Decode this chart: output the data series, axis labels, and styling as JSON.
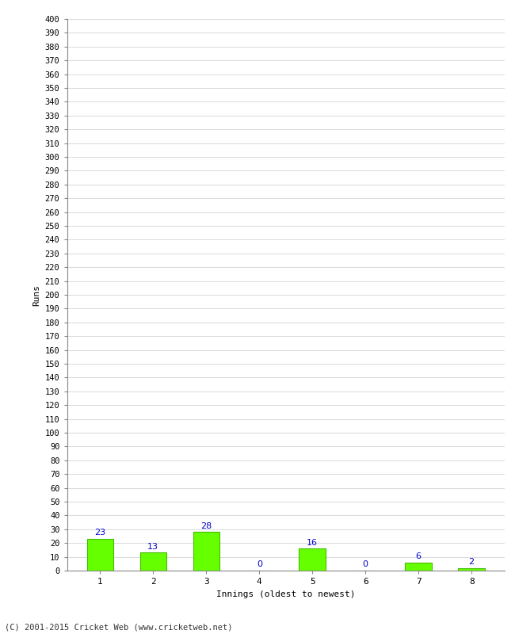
{
  "categories": [
    "1",
    "2",
    "3",
    "4",
    "5",
    "6",
    "7",
    "8"
  ],
  "values": [
    23,
    13,
    28,
    0,
    16,
    0,
    6,
    2
  ],
  "bar_color": "#66ff00",
  "bar_edge_color": "#44bb00",
  "label_color": "#0000cc",
  "xlabel": "Innings (oldest to newest)",
  "ylabel": "Runs",
  "ylim": [
    0,
    400
  ],
  "background_color": "#ffffff",
  "grid_color": "#cccccc",
  "footer": "(C) 2001-2015 Cricket Web (www.cricketweb.net)"
}
